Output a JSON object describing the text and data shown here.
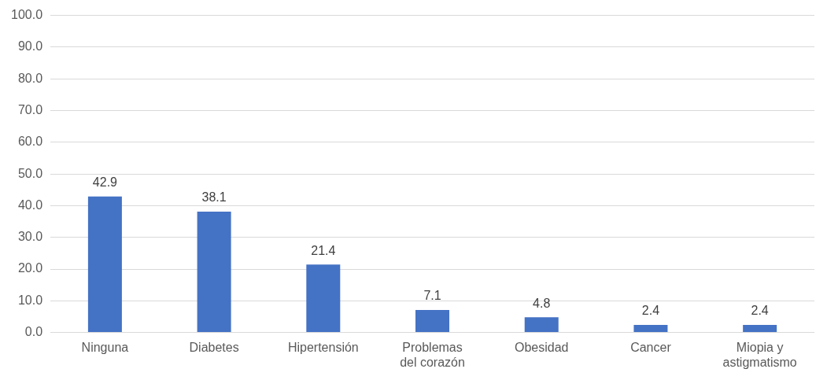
{
  "chart_data": {
    "type": "bar",
    "categories": [
      "Ninguna",
      "Diabetes",
      "Hipertensión",
      "Problemas del corazón",
      "Obesidad",
      "Cancer",
      "Miopia y astigmatismo"
    ],
    "values": [
      42.9,
      38.1,
      21.4,
      7.1,
      4.8,
      2.4,
      2.4
    ],
    "color": "#4472c4",
    "ylim": [
      0,
      100
    ],
    "yticks": [
      {
        "value": 0,
        "label": "0.0"
      },
      {
        "value": 10,
        "label": "10.0"
      },
      {
        "value": 20,
        "label": "20.0"
      },
      {
        "value": 30,
        "label": "30.0"
      },
      {
        "value": 40,
        "label": "40.0"
      },
      {
        "value": 50,
        "label": "50.0"
      },
      {
        "value": 60,
        "label": "60.0"
      },
      {
        "value": 70,
        "label": "70.0"
      },
      {
        "value": 80,
        "label": "80.0"
      },
      {
        "value": 90,
        "label": "90.0"
      },
      {
        "value": 100,
        "label": "100.0"
      }
    ],
    "grid": true,
    "data_labels": true
  }
}
